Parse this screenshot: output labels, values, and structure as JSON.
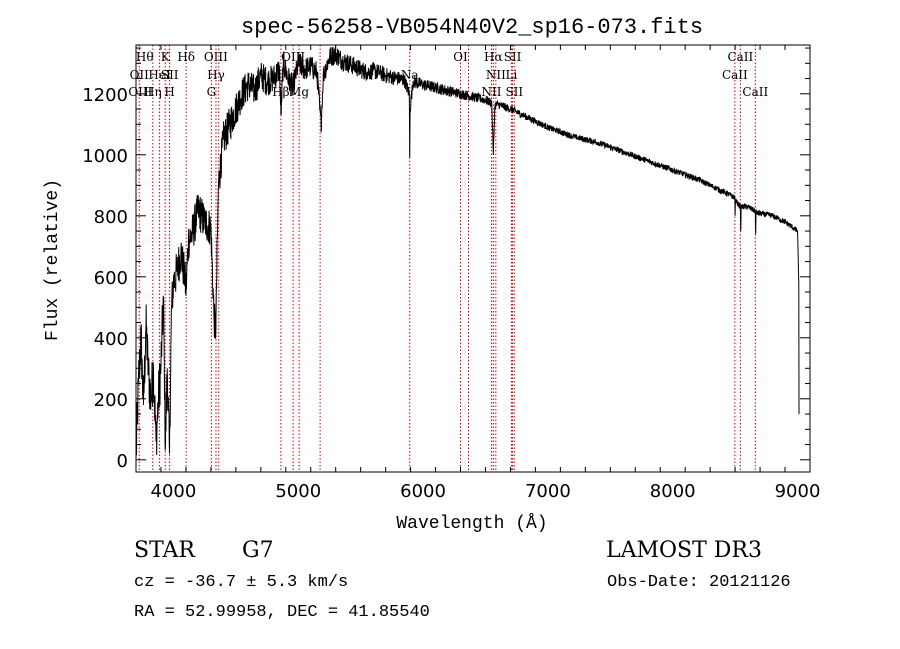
{
  "chart_data": {
    "type": "line",
    "title": "spec-56258-VB054N40V2_sp16-073.fits",
    "xlabel": "Wavelength (Å)",
    "ylabel": "Flux (relative)",
    "xlim": [
      3700,
      9100
    ],
    "ylim": [
      -40,
      1360
    ],
    "x_ticks": [
      4000,
      5000,
      6000,
      7000,
      8000,
      9000
    ],
    "y_ticks": [
      0,
      200,
      400,
      600,
      800,
      1000,
      1200
    ],
    "x_minor_step": 200,
    "y_minor_step": 50,
    "grid": false,
    "spectrum_anchors": [
      [
        3700,
        0
      ],
      [
        3720,
        250
      ],
      [
        3740,
        400
      ],
      [
        3760,
        180
      ],
      [
        3780,
        440
      ],
      [
        3800,
        280
      ],
      [
        3820,
        200
      ],
      [
        3840,
        300
      ],
      [
        3860,
        60
      ],
      [
        3880,
        200
      ],
      [
        3900,
        310
      ],
      [
        3920,
        530
      ],
      [
        3935,
        40
      ],
      [
        3950,
        300
      ],
      [
        3968,
        20
      ],
      [
        3985,
        500
      ],
      [
        4000,
        580
      ],
      [
        4030,
        620
      ],
      [
        4060,
        680
      ],
      [
        4090,
        600
      ],
      [
        4101,
        560
      ],
      [
        4120,
        720
      ],
      [
        4150,
        740
      ],
      [
        4200,
        820
      ],
      [
        4250,
        780
      ],
      [
        4300,
        760
      ],
      [
        4326,
        460
      ],
      [
        4340,
        430
      ],
      [
        4360,
        900
      ],
      [
        4400,
        1050
      ],
      [
        4450,
        1100
      ],
      [
        4500,
        1150
      ],
      [
        4550,
        1200
      ],
      [
        4600,
        1230
      ],
      [
        4650,
        1210
      ],
      [
        4700,
        1260
      ],
      [
        4750,
        1240
      ],
      [
        4800,
        1250
      ],
      [
        4850,
        1280
      ],
      [
        4861,
        1130
      ],
      [
        4880,
        1300
      ],
      [
        4920,
        1250
      ],
      [
        4957,
        1220
      ],
      [
        5000,
        1300
      ],
      [
        5050,
        1280
      ],
      [
        5100,
        1290
      ],
      [
        5150,
        1270
      ],
      [
        5172,
        1150
      ],
      [
        5183,
        1100
      ],
      [
        5200,
        1260
      ],
      [
        5250,
        1320
      ],
      [
        5300,
        1330
      ],
      [
        5350,
        1310
      ],
      [
        5400,
        1300
      ],
      [
        5450,
        1290
      ],
      [
        5500,
        1280
      ],
      [
        5550,
        1270
      ],
      [
        5600,
        1275
      ],
      [
        5650,
        1270
      ],
      [
        5700,
        1260
      ],
      [
        5750,
        1255
      ],
      [
        5800,
        1250
      ],
      [
        5850,
        1245
      ],
      [
        5890,
        1200
      ],
      [
        5893,
        990
      ],
      [
        5896,
        1150
      ],
      [
        5920,
        1240
      ],
      [
        6000,
        1230
      ],
      [
        6100,
        1220
      ],
      [
        6200,
        1210
      ],
      [
        6300,
        1200
      ],
      [
        6400,
        1190
      ],
      [
        6500,
        1180
      ],
      [
        6550,
        1170
      ],
      [
        6563,
        1000
      ],
      [
        6575,
        1160
      ],
      [
        6600,
        1165
      ],
      [
        6700,
        1150
      ],
      [
        6800,
        1130
      ],
      [
        6900,
        1110
      ],
      [
        7000,
        1090
      ],
      [
        7200,
        1060
      ],
      [
        7400,
        1040
      ],
      [
        7600,
        1010
      ],
      [
        7800,
        980
      ],
      [
        8000,
        950
      ],
      [
        8200,
        920
      ],
      [
        8400,
        880
      ],
      [
        8498,
        860
      ],
      [
        8500,
        800
      ],
      [
        8502,
        850
      ],
      [
        8542,
        830
      ],
      [
        8545,
        750
      ],
      [
        8548,
        830
      ],
      [
        8600,
        830
      ],
      [
        8662,
        815
      ],
      [
        8665,
        740
      ],
      [
        8668,
        810
      ],
      [
        8800,
        800
      ],
      [
        8900,
        780
      ],
      [
        9000,
        750
      ],
      [
        9010,
        580
      ],
      [
        9012,
        150
      ]
    ],
    "noise_profile": [
      [
        3700,
        90
      ],
      [
        3900,
        90
      ],
      [
        3990,
        70
      ],
      [
        4400,
        60
      ],
      [
        5000,
        40
      ],
      [
        6000,
        20
      ],
      [
        7000,
        10
      ],
      [
        9000,
        9
      ]
    ],
    "line_markers": [
      {
        "wavelength": 3770,
        "label": "Hθ",
        "row": 1
      },
      {
        "wavelength": 3726,
        "label": "OII",
        "row": 2
      },
      {
        "wavelength": 3735,
        "label": "OIII",
        "row": 3
      },
      {
        "wavelength": 3835,
        "label": "Hη",
        "row": 3
      },
      {
        "wavelength": 3889,
        "label": "HeI",
        "row": 2
      },
      {
        "wavelength": 3934,
        "label": "K",
        "row": 1
      },
      {
        "wavelength": 3969,
        "label": "H",
        "row": 3
      },
      {
        "wavelength": 3970,
        "label": "SII",
        "row": 2
      },
      {
        "wavelength": 4102,
        "label": "Hδ",
        "row": 1
      },
      {
        "wavelength": 4340,
        "label": "OIII",
        "row": 1
      },
      {
        "wavelength": 4341,
        "label": "Hγ",
        "row": 2
      },
      {
        "wavelength": 4304,
        "label": "G",
        "row": 3
      },
      {
        "wavelength": 4861,
        "label": "Hβ",
        "row": 3
      },
      {
        "wavelength": 4959,
        "label": "OIII",
        "row": 1
      },
      {
        "wavelength": 5007,
        "label": "Mg",
        "row": 3
      },
      {
        "wavelength": 5893,
        "label": "Na",
        "row": 2
      },
      {
        "wavelength": 6300,
        "label": "OI",
        "row": 1
      },
      {
        "wavelength": 6563,
        "label": "Hα",
        "row": 1
      },
      {
        "wavelength": 6583,
        "label": "NII",
        "row": 2
      },
      {
        "wavelength": 6548,
        "label": "NII",
        "row": 3
      },
      {
        "wavelength": 6717,
        "label": "SII",
        "row": 1
      },
      {
        "wavelength": 6708,
        "label": "Li",
        "row": 2
      },
      {
        "wavelength": 6731,
        "label": "SII",
        "row": 3
      },
      {
        "wavelength": 8498,
        "label": "CaII",
        "row": 2
      },
      {
        "wavelength": 8542,
        "label": "CaII",
        "row": 1
      },
      {
        "wavelength": 8662,
        "label": "CaII",
        "row": 3
      }
    ],
    "marker_line_wavelengths": [
      3726,
      3835,
      3889,
      3934,
      3969,
      4102,
      4304,
      4341,
      4363,
      4861,
      4959,
      5007,
      5175,
      5893,
      6300,
      6364,
      6548,
      6563,
      6583,
      6708,
      6717,
      6731,
      8498,
      8542,
      8662
    ]
  },
  "info": {
    "object_class": "STAR",
    "subclass": "G7",
    "survey": "LAMOST DR3",
    "cz": "cz = -36.7 ± 5.3 km/s",
    "obs_date": "Obs-Date: 20121126",
    "ra_dec": "RA =  52.99958, DEC =  41.85540"
  },
  "colors": {
    "line": "#000000",
    "marker": "#cc0000",
    "background": "#ffffff"
  }
}
